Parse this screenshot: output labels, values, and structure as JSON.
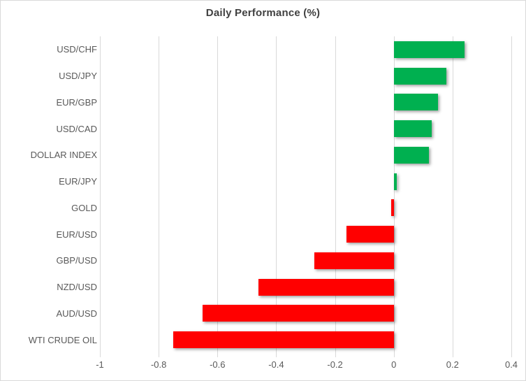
{
  "chart_data": {
    "type": "bar",
    "orientation": "horizontal",
    "title": "Daily Performance (%)",
    "categories": [
      "USD/CHF",
      "USD/JPY",
      "EUR/GBP",
      "USD/CAD",
      "DOLLAR INDEX",
      "EUR/JPY",
      "GOLD",
      "EUR/USD",
      "GBP/USD",
      "NZD/USD",
      "AUD/USD",
      "WTI CRUDE OIL"
    ],
    "values": [
      0.24,
      0.18,
      0.15,
      0.13,
      0.12,
      0.01,
      -0.01,
      -0.16,
      -0.27,
      -0.46,
      -0.65,
      -0.75
    ],
    "xlim": [
      -1,
      0.4
    ],
    "x_ticks": [
      {
        "label": "-1",
        "value": -1
      },
      {
        "label": "-0.8",
        "value": -0.8
      },
      {
        "label": "-0.6",
        "value": -0.6
      },
      {
        "label": "-0.4",
        "value": -0.4
      },
      {
        "label": "-0.2",
        "value": -0.2
      },
      {
        "label": "0",
        "value": 0
      },
      {
        "label": "0.2",
        "value": 0.2
      },
      {
        "label": "0.4",
        "value": 0.4
      }
    ],
    "grid": "vertical",
    "legend": "none",
    "colors": {
      "positive": "#00B050",
      "negative": "#FF0000",
      "gridline": "#D9D9D9",
      "axis_text": "#595959",
      "title_text": "#404040",
      "frame_border": "#D9D9D9",
      "background": "#FFFFFF"
    }
  }
}
